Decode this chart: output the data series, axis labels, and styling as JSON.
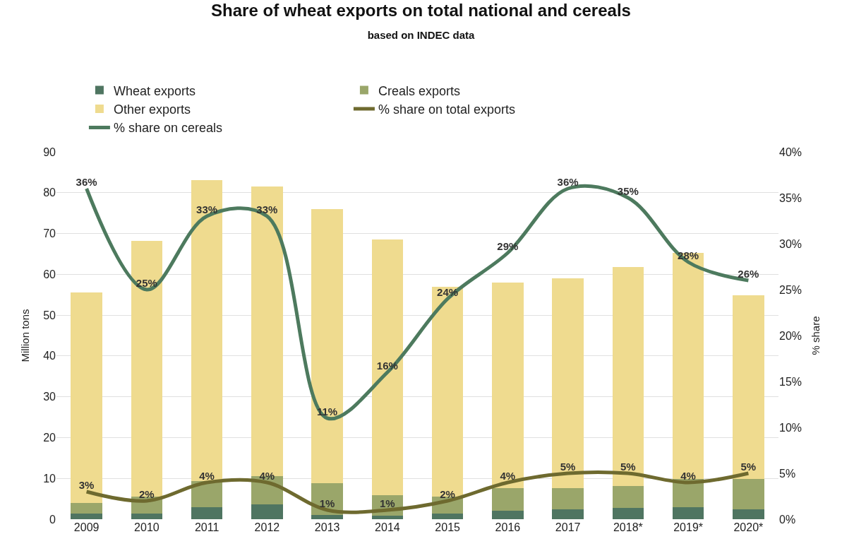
{
  "chart_data": {
    "type": "bar",
    "title": "Share of wheat exports on total national and cereals",
    "subtitle": "based on INDEC data",
    "ylabel": "Million tons",
    "y2label": "% share",
    "categories": [
      "2009",
      "2010",
      "2011",
      "2012",
      "2013",
      "2014",
      "2015",
      "2016",
      "2017",
      "2018*",
      "2019*",
      "2020*"
    ],
    "stacked": true,
    "grid": "y",
    "legend": "top",
    "series": [
      {
        "name": "Wheat exports",
        "color": "#4f7561",
        "values": [
          1.4,
          1.3,
          3.0,
          3.6,
          1.0,
          0.9,
          1.4,
          2.1,
          2.5,
          2.8,
          2.9,
          2.4
        ]
      },
      {
        "name": "Creals exports",
        "color": "#9aa66a",
        "values": [
          2.6,
          4.2,
          6.3,
          6.9,
          7.9,
          5.0,
          4.1,
          5.5,
          5.2,
          5.4,
          6.9,
          7.4
        ]
      },
      {
        "name": "Other exports",
        "color": "#efdb8f",
        "values": [
          51.6,
          62.7,
          73.7,
          71.0,
          67.1,
          62.6,
          51.5,
          50.4,
          51.3,
          53.6,
          55.4,
          45.0
        ]
      },
      {
        "name": "% share on total exports",
        "type": "line",
        "axis": "y2",
        "color": "#6e6a2f",
        "values": [
          3,
          2,
          4,
          4,
          1,
          1,
          2,
          4,
          5,
          5,
          4,
          5
        ],
        "value_labels": [
          "3%",
          "2%",
          "4%",
          "4%",
          "1%",
          "1%",
          "2%",
          "4%",
          "5%",
          "5%",
          "4%",
          "5%"
        ]
      },
      {
        "name": "% share on cereals",
        "type": "line",
        "axis": "y2",
        "color": "#4d7a5e",
        "values": [
          36,
          25,
          33,
          33,
          11,
          16,
          24,
          29,
          36,
          35,
          28,
          26
        ],
        "value_labels": [
          "36%",
          "25%",
          "33%",
          "33%",
          "11%",
          "16%",
          "24%",
          "29%",
          "36%",
          "35%",
          "28%",
          "26%"
        ]
      }
    ],
    "ylim": [
      0,
      90
    ],
    "yticks": [
      0,
      10,
      20,
      30,
      40,
      50,
      60,
      70,
      80,
      90
    ],
    "y2lim": [
      0,
      40
    ],
    "y2ticks": [
      {
        "value": 0,
        "label": "0%"
      },
      {
        "value": 5,
        "label": "5%"
      },
      {
        "value": 10,
        "label": "10%"
      },
      {
        "value": 15,
        "label": "15%"
      },
      {
        "value": 20,
        "label": "20%"
      },
      {
        "value": 25,
        "label": "25%"
      },
      {
        "value": 30,
        "label": "30%"
      },
      {
        "value": 35,
        "label": "35%"
      },
      {
        "value": 40,
        "label": "40%"
      }
    ]
  }
}
